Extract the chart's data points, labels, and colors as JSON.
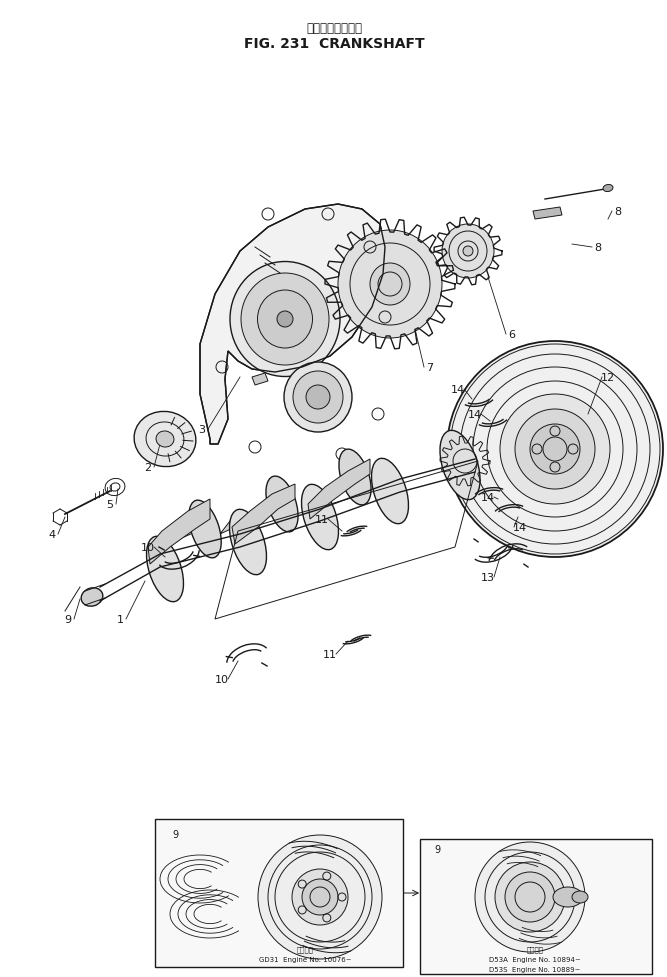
{
  "title_jp": "クランクシャフト",
  "title_en": "FIG. 231  CRANKSHAFT",
  "bg_color": "#ffffff",
  "line_color": "#1a1a1a",
  "fig_width": 6.67,
  "fig_height": 9.78,
  "dpi": 100,
  "subtitle_left": "GD31  Engine No. 10076~",
  "subtitle_right_1": "D53A  Engine No. 10894~",
  "subtitle_right_2": "D53S  Engine No. 10889~"
}
